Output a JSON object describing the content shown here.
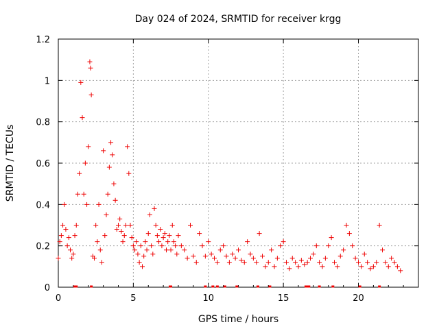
{
  "chart_data": {
    "type": "scatter",
    "title": "Day 024 of 2024, SRMTID for receiver krgg",
    "xlabel": "GPS time / hours",
    "ylabel": "SRMTID / TECUs",
    "xlim": [
      0,
      24
    ],
    "ylim": [
      0,
      1.2
    ],
    "x_ticks": [
      0,
      5,
      10,
      15,
      20
    ],
    "x_tick_labels": [
      "0",
      "5",
      "10",
      "15",
      "20"
    ],
    "y_ticks": [
      0,
      0.2,
      0.4,
      0.6,
      0.8,
      1.0,
      1.2
    ],
    "y_tick_labels": [
      "0",
      "0.2",
      "0.4",
      "0.6",
      "0.8",
      "1",
      "1.2"
    ],
    "grid": true,
    "marker": "+",
    "color": "#ee0000",
    "series": [
      {
        "name": "SRMTID",
        "x": [
          0.0,
          0.1,
          0.2,
          0.3,
          0.4,
          0.5,
          0.6,
          0.7,
          0.8,
          0.9,
          1.0,
          1.1,
          1.2,
          1.3,
          1.4,
          1.5,
          1.6,
          1.7,
          1.8,
          1.9,
          2.0,
          2.1,
          2.15,
          2.2,
          2.3,
          2.4,
          2.5,
          2.6,
          2.7,
          2.8,
          2.9,
          3.0,
          3.1,
          3.2,
          3.3,
          3.4,
          3.5,
          3.6,
          3.7,
          3.8,
          3.9,
          4.0,
          4.1,
          4.2,
          4.3,
          4.4,
          4.5,
          4.6,
          4.7,
          4.8,
          4.9,
          5.0,
          5.1,
          5.2,
          5.3,
          5.4,
          5.5,
          5.6,
          5.7,
          5.8,
          5.9,
          6.0,
          6.1,
          6.2,
          6.3,
          6.4,
          6.5,
          6.6,
          6.7,
          6.8,
          6.9,
          7.0,
          7.1,
          7.2,
          7.3,
          7.4,
          7.5,
          7.6,
          7.7,
          7.8,
          7.9,
          8.0,
          8.2,
          8.4,
          8.6,
          8.8,
          9.0,
          9.2,
          9.4,
          9.6,
          9.8,
          10.0,
          10.2,
          10.4,
          10.6,
          10.8,
          11.0,
          11.2,
          11.4,
          11.6,
          11.8,
          12.0,
          12.2,
          12.4,
          12.6,
          12.8,
          13.0,
          13.2,
          13.4,
          13.6,
          13.8,
          14.0,
          14.2,
          14.4,
          14.6,
          14.8,
          15.0,
          15.2,
          15.4,
          15.6,
          15.8,
          16.0,
          16.2,
          16.4,
          16.6,
          16.8,
          17.0,
          17.2,
          17.4,
          17.6,
          17.8,
          18.0,
          18.2,
          18.4,
          18.6,
          18.8,
          19.0,
          19.2,
          19.4,
          19.6,
          19.8,
          20.0,
          20.2,
          20.4,
          20.6,
          20.8,
          21.0,
          21.2,
          21.4,
          21.6,
          21.8,
          22.0,
          22.2,
          22.4,
          22.6,
          22.8
        ],
        "y": [
          0.14,
          0.22,
          0.25,
          0.3,
          0.4,
          0.28,
          0.2,
          0.24,
          0.18,
          0.14,
          0.16,
          0.25,
          0.3,
          0.45,
          0.55,
          0.99,
          0.82,
          0.45,
          0.6,
          0.4,
          0.68,
          1.09,
          1.06,
          0.93,
          0.15,
          0.14,
          0.3,
          0.22,
          0.4,
          0.18,
          0.12,
          0.66,
          0.25,
          0.35,
          0.45,
          0.58,
          0.7,
          0.64,
          0.5,
          0.42,
          0.28,
          0.3,
          0.33,
          0.27,
          0.22,
          0.25,
          0.3,
          0.68,
          0.55,
          0.3,
          0.24,
          0.2,
          0.18,
          0.22,
          0.16,
          0.12,
          0.2,
          0.1,
          0.15,
          0.22,
          0.18,
          0.26,
          0.35,
          0.2,
          0.16,
          0.38,
          0.3,
          0.25,
          0.22,
          0.28,
          0.2,
          0.24,
          0.26,
          0.18,
          0.22,
          0.25,
          0.18,
          0.3,
          0.22,
          0.2,
          0.16,
          0.25,
          0.2,
          0.18,
          0.14,
          0.3,
          0.15,
          0.12,
          0.26,
          0.2,
          0.15,
          0.22,
          0.16,
          0.14,
          0.12,
          0.18,
          0.2,
          0.15,
          0.12,
          0.16,
          0.14,
          0.18,
          0.13,
          0.12,
          0.22,
          0.16,
          0.14,
          0.12,
          0.26,
          0.15,
          0.1,
          0.12,
          0.18,
          0.1,
          0.14,
          0.2,
          0.22,
          0.12,
          0.09,
          0.14,
          0.12,
          0.1,
          0.13,
          0.11,
          0.12,
          0.14,
          0.16,
          0.2,
          0.12,
          0.1,
          0.14,
          0.2,
          0.24,
          0.12,
          0.1,
          0.15,
          0.18,
          0.3,
          0.26,
          0.2,
          0.14,
          0.12,
          0.1,
          0.16,
          0.12,
          0.09,
          0.1,
          0.12,
          0.3,
          0.18,
          0.12,
          0.1,
          0.14,
          0.12,
          0.1,
          0.08
        ]
      }
    ],
    "no_data_markers_x": [
      1.1,
      1.2,
      2.2,
      7.45,
      7.5,
      9.8,
      10.3,
      10.6,
      11.1,
      11.9,
      13.3,
      14.1,
      16.5,
      16.6,
      16.7,
      17.4,
      18.3,
      20.1,
      21.4
    ]
  }
}
